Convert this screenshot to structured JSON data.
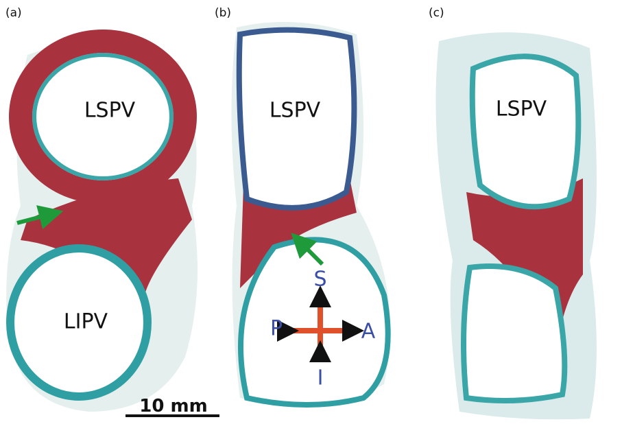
{
  "panels": [
    {
      "label": "(a)",
      "vessels": [
        "LSPV",
        "LIPV"
      ]
    },
    {
      "label": "(b)",
      "vessels": [
        "LSPV"
      ]
    },
    {
      "label": "(c)",
      "vessels": [
        "LSPV"
      ]
    }
  ],
  "orientation": {
    "superior": "S",
    "posterior": "P",
    "anterior": "A",
    "inferior": "I"
  },
  "scale_bar": "10 mm"
}
